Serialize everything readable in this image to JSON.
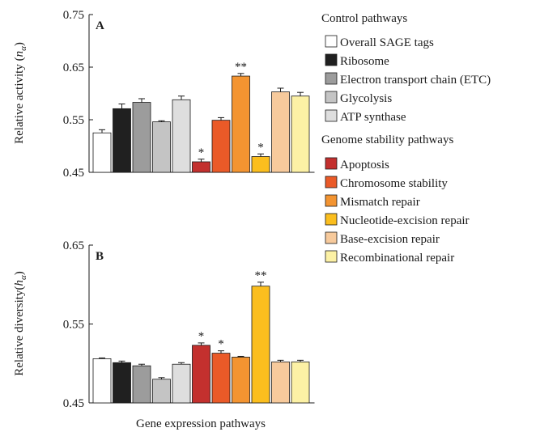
{
  "legend": {
    "control_heading": "Control pathways",
    "genome_heading": "Genome stability pathways"
  },
  "xlabel": "Gene expression pathways",
  "chart_data": [
    {
      "type": "bar",
      "panel": "A",
      "ylabel_main": "Relative activity (",
      "ylabel_var": "n",
      "ylabel_sub": "α",
      "ylabel_close": ")",
      "ylim": [
        0.45,
        0.75
      ],
      "yticks": [
        "0.75",
        "0.65",
        "0.55",
        "0.45"
      ],
      "ytick_values": [
        0.75,
        0.65,
        0.55,
        0.45
      ],
      "categories": [
        "Overall SAGE tags",
        "Ribosome",
        "Electron transport chain (ETC)",
        "Glycolysis",
        "ATP synthase",
        "Apoptosis",
        "Chromosome stability",
        "Mismatch repair",
        "Nucleotide-excision repair",
        "Base-excision repair",
        "Recombinational repair"
      ],
      "values": [
        0.525,
        0.571,
        0.583,
        0.546,
        0.588,
        0.47,
        0.549,
        0.633,
        0.48,
        0.603,
        0.595
      ],
      "errors": [
        0.006,
        0.009,
        0.007,
        0.002,
        0.007,
        0.005,
        0.005,
        0.005,
        0.005,
        0.007,
        0.007
      ],
      "annotations": [
        "",
        "",
        "",
        "",
        "",
        "*",
        "",
        "**",
        "*",
        "",
        ""
      ]
    },
    {
      "type": "bar",
      "panel": "B",
      "ylabel_main": "Relative diversity(",
      "ylabel_var": "h",
      "ylabel_sub": "α",
      "ylabel_close": ")",
      "ylim": [
        0.45,
        0.65
      ],
      "yticks": [
        "0.65",
        "0.55",
        "0.45"
      ],
      "ytick_values": [
        0.65,
        0.55,
        0.45
      ],
      "categories": [
        "Overall SAGE tags",
        "Ribosome",
        "Electron transport chain (ETC)",
        "Glycolysis",
        "ATP synthase",
        "Apoptosis",
        "Chromosome stability",
        "Mismatch repair",
        "Nucleotide-excision repair",
        "Base-excision repair",
        "Recombinational repair"
      ],
      "values": [
        0.506,
        0.501,
        0.497,
        0.48,
        0.499,
        0.523,
        0.513,
        0.508,
        0.598,
        0.502,
        0.502
      ],
      "errors": [
        0.001,
        0.002,
        0.002,
        0.002,
        0.002,
        0.003,
        0.003,
        0.001,
        0.005,
        0.002,
        0.002
      ],
      "annotations": [
        "",
        "",
        "",
        "",
        "",
        "*",
        "*",
        "",
        "**",
        "",
        ""
      ]
    }
  ],
  "series_colors": [
    "#ffffff",
    "#202020",
    "#9c9c9c",
    "#c4c4c4",
    "#dedede",
    "#c3302e",
    "#ea5a28",
    "#f39431",
    "#fbbe1e",
    "#f7ca9c",
    "#fcf1a5"
  ]
}
